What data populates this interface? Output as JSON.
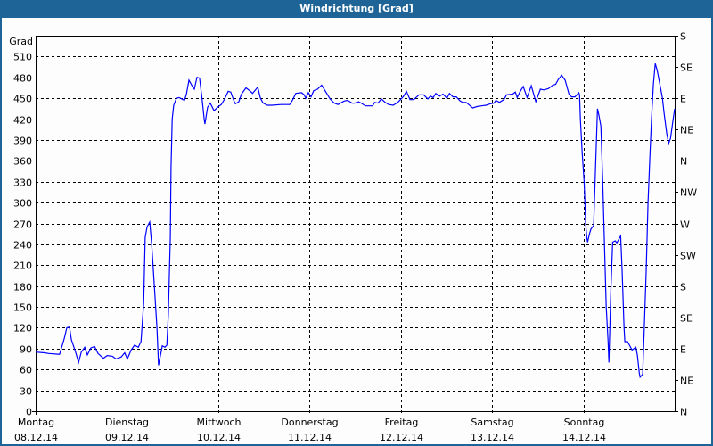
{
  "window": {
    "title": "Windrichtung [Grad]"
  },
  "chart_data": {
    "type": "line",
    "title": "Windrichtung [Grad]",
    "ylabel": "Grad",
    "ylim": [
      0,
      540
    ],
    "yticks": [
      0,
      30,
      60,
      90,
      120,
      150,
      180,
      210,
      240,
      270,
      300,
      330,
      360,
      390,
      420,
      450,
      480,
      510
    ],
    "y2ticks": [
      {
        "value": 0,
        "label": "N"
      },
      {
        "value": 45,
        "label": "NE"
      },
      {
        "value": 90,
        "label": "E"
      },
      {
        "value": 135,
        "label": "SE"
      },
      {
        "value": 180,
        "label": "S"
      },
      {
        "value": 225,
        "label": "SW"
      },
      {
        "value": 270,
        "label": "W"
      },
      {
        "value": 315,
        "label": "NW"
      },
      {
        "value": 360,
        "label": "N"
      },
      {
        "value": 405,
        "label": "NE"
      },
      {
        "value": 450,
        "label": "E"
      },
      {
        "value": 495,
        "label": "SE"
      },
      {
        "value": 540,
        "label": "S"
      }
    ],
    "xticks": [
      {
        "day": "Montag",
        "date": "08.12.14"
      },
      {
        "day": "Dienstag",
        "date": "09.12.14"
      },
      {
        "day": "Mittwoch",
        "date": "10.12.14"
      },
      {
        "day": "Donnerstag",
        "date": "11.12.14"
      },
      {
        "day": "Freitag",
        "date": "12.12.14"
      },
      {
        "day": "Samstag",
        "date": "13.12.14"
      },
      {
        "day": "Sonntag",
        "date": "14.12.14"
      }
    ],
    "xlim": [
      "08.12.14 00:00",
      "15.12.14 00:00"
    ],
    "grid": true,
    "line_color": "#0000ff",
    "series": [
      {
        "points": [
          [
            "08.12.14 00:00",
            85
          ],
          [
            "08.12.14 02:18",
            84
          ],
          [
            "08.12.14 03:30",
            83
          ],
          [
            "08.12.14 05:54",
            82
          ],
          [
            "08.12.14 06:18",
            82
          ],
          [
            "08.12.14 07:30",
            104
          ],
          [
            "08.12.14 08:12",
            120
          ],
          [
            "08.12.14 08:54",
            121
          ],
          [
            "08.12.14 09:24",
            103
          ],
          [
            "08.12.14 10:30",
            85
          ],
          [
            "08.12.14 11:18",
            70
          ],
          [
            "08.12.14 12:00",
            85
          ],
          [
            "08.12.14 12:54",
            92
          ],
          [
            "08.12.14 13:36",
            81
          ],
          [
            "08.12.14 14:30",
            91
          ],
          [
            "08.12.14 15:30",
            93
          ],
          [
            "08.12.14 16:24",
            83
          ],
          [
            "08.12.14 17:48",
            76
          ],
          [
            "08.12.14 18:48",
            80
          ],
          [
            "08.12.14 20:12",
            79
          ],
          [
            "08.12.14 21:06",
            75
          ],
          [
            "08.12.14 22:30",
            78
          ],
          [
            "08.12.14 23:24",
            84
          ],
          [
            "09.12.14 00:06",
            75
          ],
          [
            "09.12.14 01:06",
            88
          ],
          [
            "09.12.14 02:00",
            95
          ],
          [
            "09.12.14 03:00",
            92
          ],
          [
            "09.12.14 03:42",
            100
          ],
          [
            "09.12.14 04:24",
            155
          ],
          [
            "09.12.14 04:48",
            250
          ],
          [
            "09.12.14 05:18",
            265
          ],
          [
            "09.12.14 06:00",
            272
          ],
          [
            "09.12.14 06:30",
            240
          ],
          [
            "09.12.14 07:12",
            180
          ],
          [
            "09.12.14 07:54",
            120
          ],
          [
            "09.12.14 08:18",
            66
          ],
          [
            "09.12.14 08:48",
            80
          ],
          [
            "09.12.14 09:18",
            94
          ],
          [
            "09.12.14 10:00",
            92
          ],
          [
            "09.12.14 10:30",
            95
          ],
          [
            "09.12.14 10:54",
            140
          ],
          [
            "09.12.14 11:24",
            250
          ],
          [
            "09.12.14 11:36",
            350
          ],
          [
            "09.12.14 11:54",
            420
          ],
          [
            "09.12.14 12:18",
            440
          ],
          [
            "09.12.14 13:00",
            450
          ],
          [
            "09.12.14 13:42",
            451
          ],
          [
            "09.12.14 15:06",
            447
          ],
          [
            "09.12.14 15:36",
            455
          ],
          [
            "09.12.14 16:18",
            476
          ],
          [
            "09.12.14 17:18",
            466
          ],
          [
            "09.12.14 17:42",
            463
          ],
          [
            "09.12.14 18:24",
            480
          ],
          [
            "09.12.14 19:06",
            479
          ],
          [
            "09.12.14 19:48",
            447
          ],
          [
            "09.12.14 20:18",
            420
          ],
          [
            "09.12.14 20:30",
            413
          ],
          [
            "09.12.14 21:12",
            437
          ],
          [
            "09.12.14 21:54",
            443
          ],
          [
            "09.12.14 22:54",
            432
          ],
          [
            "09.12.14 23:48",
            437
          ],
          [
            "10.12.14 00:48",
            441
          ],
          [
            "10.12.14 01:42",
            449
          ],
          [
            "10.12.14 02:36",
            460
          ],
          [
            "10.12.14 03:18",
            459
          ],
          [
            "10.12.14 04:00",
            448
          ],
          [
            "10.12.14 04:30",
            442
          ],
          [
            "10.12.14 05:24",
            445
          ],
          [
            "10.12.14 06:06",
            456
          ],
          [
            "10.12.14 07:18",
            465
          ],
          [
            "10.12.14 08:30",
            460
          ],
          [
            "10.12.14 09:00",
            457
          ],
          [
            "10.12.14 10:24",
            466
          ],
          [
            "10.12.14 11:06",
            450
          ],
          [
            "10.12.14 11:48",
            443
          ],
          [
            "10.12.14 12:54",
            440
          ],
          [
            "10.12.14 14:06",
            440
          ],
          [
            "10.12.14 16:30",
            441
          ],
          [
            "10.12.14 18:48",
            441
          ],
          [
            "10.12.14 19:30",
            447
          ],
          [
            "10.12.14 20:24",
            457
          ],
          [
            "10.12.14 21:54",
            458
          ],
          [
            "10.12.14 22:36",
            455
          ],
          [
            "10.12.14 23:00",
            450
          ],
          [
            "10.12.14 23:42",
            458
          ],
          [
            "11.12.14 00:24",
            452
          ],
          [
            "11.12.14 01:06",
            461
          ],
          [
            "11.12.14 02:06",
            463
          ],
          [
            "11.12.14 03:12",
            469
          ],
          [
            "11.12.14 04:12",
            460
          ],
          [
            "11.12.14 05:24",
            449
          ],
          [
            "11.12.14 06:30",
            443
          ],
          [
            "11.12.14 07:30",
            441
          ],
          [
            "11.12.14 09:06",
            446
          ],
          [
            "11.12.14 10:00",
            447
          ],
          [
            "11.12.14 11:12",
            443
          ],
          [
            "11.12.14 11:54",
            443
          ],
          [
            "11.12.14 12:54",
            445
          ],
          [
            "11.12.14 13:36",
            443
          ],
          [
            "11.12.14 14:42",
            439
          ],
          [
            "11.12.14 16:36",
            439
          ],
          [
            "11.12.14 17:06",
            444
          ],
          [
            "11.12.14 18:00",
            443
          ],
          [
            "11.12.14 18:54",
            449
          ],
          [
            "11.12.14 19:54",
            444
          ],
          [
            "11.12.14 20:48",
            441
          ],
          [
            "11.12.14 22:00",
            440
          ],
          [
            "11.12.14 23:12",
            444
          ],
          [
            "12.12.14 00:36",
            452
          ],
          [
            "12.12.14 01:30",
            460
          ],
          [
            "12.12.14 02:24",
            448
          ],
          [
            "12.12.14 03:24",
            448
          ],
          [
            "12.12.14 04:48",
            455
          ],
          [
            "12.12.14 06:00",
            455
          ],
          [
            "12.12.14 07:06",
            449
          ],
          [
            "12.12.14 07:48",
            453
          ],
          [
            "12.12.14 08:30",
            451
          ],
          [
            "12.12.14 09:12",
            457
          ],
          [
            "12.12.14 10:12",
            453
          ],
          [
            "12.12.14 11:06",
            456
          ],
          [
            "12.12.14 12:06",
            450
          ],
          [
            "12.12.14 12:48",
            457
          ],
          [
            "12.12.14 13:42",
            452
          ],
          [
            "12.12.14 14:36",
            452
          ],
          [
            "12.12.14 15:36",
            446
          ],
          [
            "12.12.14 16:18",
            444
          ],
          [
            "12.12.14 17:12",
            444
          ],
          [
            "12.12.14 18:54",
            436
          ],
          [
            "12.12.14 20:00",
            438
          ],
          [
            "12.12.14 21:12",
            439
          ],
          [
            "12.12.14 22:24",
            440
          ],
          [
            "12.12.14 23:30",
            442
          ],
          [
            "13.12.14 00:30",
            443
          ],
          [
            "13.12.14 01:00",
            447
          ],
          [
            "13.12.14 01:54",
            444
          ],
          [
            "13.12.14 03:06",
            448
          ],
          [
            "13.12.14 03:48",
            455
          ],
          [
            "13.12.14 05:24",
            456
          ],
          [
            "13.12.14 06:06",
            459
          ],
          [
            "13.12.14 06:36",
            451
          ],
          [
            "13.12.14 07:18",
            459
          ],
          [
            "13.12.14 08:12",
            467
          ],
          [
            "13.12.14 09:12",
            451
          ],
          [
            "13.12.14 10:18",
            468
          ],
          [
            "13.12.14 11:30",
            445
          ],
          [
            "13.12.14 12:42",
            463
          ],
          [
            "13.12.14 13:36",
            462
          ],
          [
            "13.12.14 14:48",
            464
          ],
          [
            "13.12.14 16:00",
            469
          ],
          [
            "13.12.14 16:42",
            470
          ],
          [
            "13.12.14 17:24",
            477
          ],
          [
            "13.12.14 18:18",
            483
          ],
          [
            "13.12.14 19:12",
            476
          ],
          [
            "13.12.14 20:12",
            456
          ],
          [
            "13.12.14 20:54",
            452
          ],
          [
            "13.12.14 21:48",
            452
          ],
          [
            "13.12.14 22:48",
            458
          ],
          [
            "13.12.14 23:00",
            455
          ],
          [
            "13.12.14 23:12",
            420
          ],
          [
            "13.12.14 23:42",
            370
          ],
          [
            "14.12.14 00:12",
            330
          ],
          [
            "14.12.14 00:24",
            300
          ],
          [
            "14.12.14 00:36",
            270
          ],
          [
            "14.12.14 00:54",
            250
          ],
          [
            "14.12.14 01:06",
            243
          ],
          [
            "14.12.14 01:36",
            255
          ],
          [
            "14.12.14 02:00",
            262
          ],
          [
            "14.12.14 02:42",
            267
          ],
          [
            "14.12.14 03:12",
            350
          ],
          [
            "14.12.14 03:42",
            435
          ],
          [
            "14.12.14 04:06",
            425
          ],
          [
            "14.12.14 04:36",
            410
          ],
          [
            "14.12.14 05:06",
            330
          ],
          [
            "14.12.14 05:30",
            250
          ],
          [
            "14.12.14 06:00",
            150
          ],
          [
            "14.12.14 06:30",
            100
          ],
          [
            "14.12.14 06:42",
            70
          ],
          [
            "14.12.14 07:12",
            170
          ],
          [
            "14.12.14 07:42",
            243
          ],
          [
            "14.12.14 08:24",
            245
          ],
          [
            "14.12.14 08:48",
            242
          ],
          [
            "14.12.14 09:48",
            252
          ],
          [
            "14.12.14 10:12",
            200
          ],
          [
            "14.12.14 10:42",
            120
          ],
          [
            "14.12.14 10:54",
            100
          ],
          [
            "14.12.14 11:36",
            100
          ],
          [
            "14.12.14 12:18",
            93
          ],
          [
            "14.12.14 12:48",
            88
          ],
          [
            "14.12.14 13:48",
            92
          ],
          [
            "14.12.14 14:12",
            80
          ],
          [
            "14.12.14 14:42",
            55
          ],
          [
            "14.12.14 14:54",
            49
          ],
          [
            "14.12.14 15:36",
            53
          ],
          [
            "14.12.14 16:00",
            120
          ],
          [
            "14.12.14 16:30",
            200
          ],
          [
            "14.12.14 17:00",
            300
          ],
          [
            "14.12.14 17:30",
            370
          ],
          [
            "14.12.14 17:54",
            420
          ],
          [
            "14.12.14 18:24",
            470
          ],
          [
            "14.12.14 18:54",
            500
          ],
          [
            "14.12.14 19:24",
            490
          ],
          [
            "14.12.14 20:06",
            470
          ],
          [
            "14.12.14 20:48",
            450
          ],
          [
            "14.12.14 21:12",
            430
          ],
          [
            "14.12.14 21:54",
            400
          ],
          [
            "14.12.14 22:24",
            385
          ],
          [
            "14.12.14 22:54",
            392
          ],
          [
            "14.12.14 23:36",
            420
          ],
          [
            "15.12.14 00:00",
            435
          ]
        ]
      }
    ]
  }
}
